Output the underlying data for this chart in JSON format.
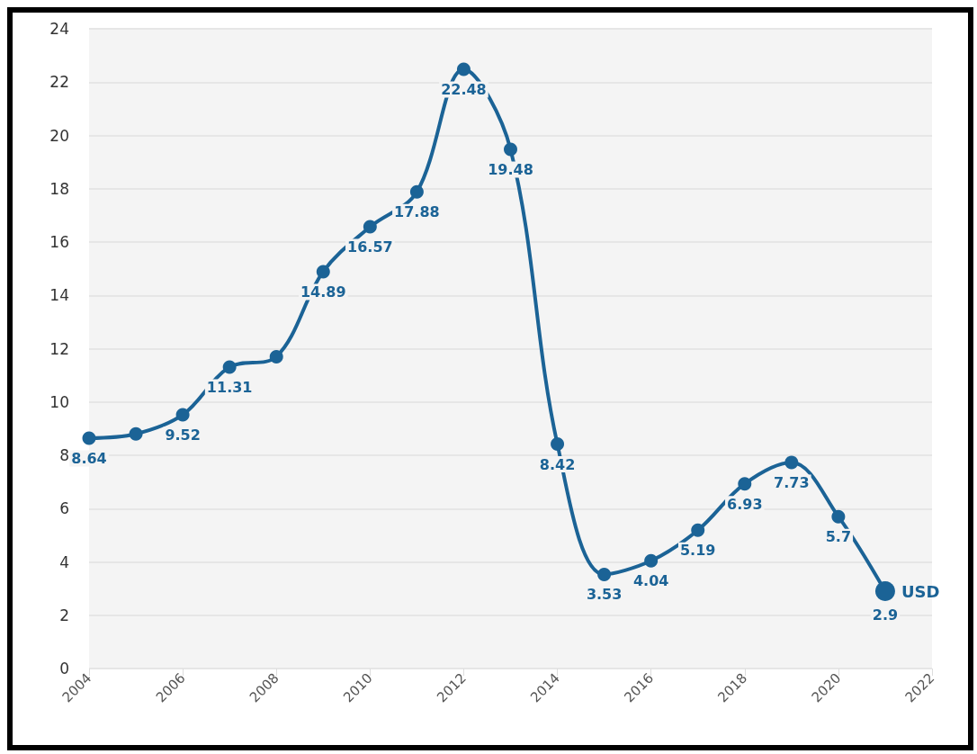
{
  "chart_data": {
    "type": "line",
    "x": [
      2004,
      2005,
      2006,
      2007,
      2008,
      2009,
      2010,
      2011,
      2012,
      2013,
      2014,
      2015,
      2016,
      2017,
      2018,
      2019,
      2020,
      2021
    ],
    "series": [
      {
        "name": "USD",
        "color": "#1b6396",
        "values": [
          8.64,
          8.8,
          9.52,
          11.31,
          11.7,
          14.89,
          16.57,
          17.88,
          22.48,
          19.48,
          8.42,
          3.53,
          4.04,
          5.19,
          6.93,
          7.73,
          5.7,
          2.9
        ],
        "value_labels": [
          "8.64",
          null,
          "9.52",
          "11.31",
          null,
          "14.89",
          "16.57",
          "17.88",
          "22.48",
          "19.48",
          "8.42",
          "3.53",
          "4.04",
          "5.19",
          "6.93",
          "7.73",
          "5.7",
          "2.9"
        ]
      }
    ],
    "xlim": [
      2004,
      2022
    ],
    "xticks": [
      2004,
      2006,
      2008,
      2010,
      2012,
      2014,
      2016,
      2018,
      2020,
      2022
    ],
    "ylim": [
      0,
      24
    ],
    "yticks": [
      0,
      2,
      4,
      6,
      8,
      10,
      12,
      14,
      16,
      18,
      20,
      22,
      24
    ],
    "grid": "y",
    "marker": "circle",
    "line_style": "solid",
    "legend": false
  }
}
